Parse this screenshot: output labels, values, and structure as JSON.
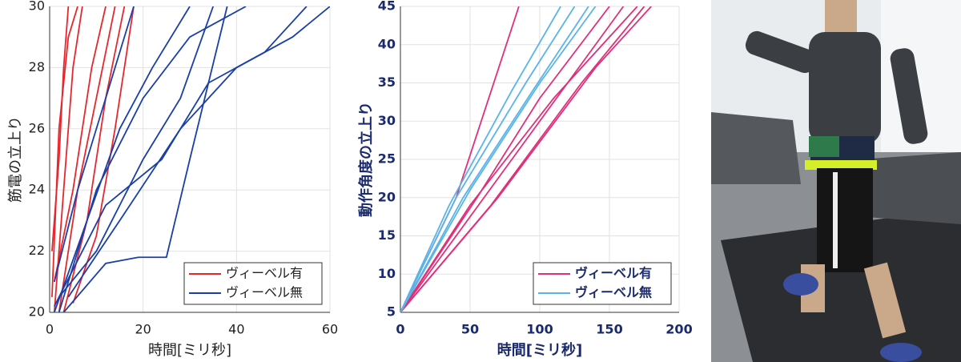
{
  "chart_data": [
    {
      "type": "line",
      "xlabel": "時間[ミリ秒]",
      "ylabel": "筋電の立上り",
      "xlim": [
        0,
        60
      ],
      "ylim": [
        20,
        30
      ],
      "xticks": [
        0,
        20,
        40,
        60
      ],
      "yticks": [
        20,
        22,
        24,
        26,
        28,
        30
      ],
      "grid": true,
      "legend": "lower right",
      "series": [
        {
          "name": "ヴィーベル有",
          "color": "#e8262e",
          "trials": [
            {
              "x": [
                1,
                3,
                5,
                7
              ],
              "y": [
                20,
                24,
                28,
                30
              ]
            },
            {
              "x": [
                0.5,
                2,
                4,
                6
              ],
              "y": [
                20.5,
                26,
                29,
                30
              ]
            },
            {
              "x": [
                2,
                6,
                10,
                14
              ],
              "y": [
                20,
                24,
                27,
                30
              ]
            },
            {
              "x": [
                1,
                5,
                9,
                12
              ],
              "y": [
                21,
                24,
                28,
                30
              ]
            },
            {
              "x": [
                3,
                8,
                12,
                16
              ],
              "y": [
                20,
                23,
                27,
                30
              ]
            },
            {
              "x": [
                0.5,
                2,
                3,
                4
              ],
              "y": [
                22,
                25,
                28,
                30
              ]
            },
            {
              "x": [
                5,
                10,
                14,
                18
              ],
              "y": [
                20.3,
                22.5,
                26,
                30
              ]
            }
          ]
        },
        {
          "name": "ヴィーベル無",
          "color": "#1a3fa6",
          "trials": [
            {
              "x": [
                1,
                8,
                15,
                22,
                30
              ],
              "y": [
                20,
                23,
                26,
                28,
                30
              ]
            },
            {
              "x": [
                2,
                10,
                20,
                28,
                35
              ],
              "y": [
                20.5,
                22,
                25,
                27,
                30
              ]
            },
            {
              "x": [
                3,
                12,
                19,
                25,
                30,
                38
              ],
              "y": [
                20,
                21.6,
                21.8,
                21.8,
                25,
                30
              ]
            },
            {
              "x": [
                1,
                6,
                12,
                18
              ],
              "y": [
                21,
                24,
                27,
                30
              ]
            },
            {
              "x": [
                4,
                15,
                28,
                40,
                52,
                60
              ],
              "y": [
                20.5,
                23,
                26,
                28,
                29,
                30
              ]
            },
            {
              "x": [
                2,
                10,
                20,
                30,
                42
              ],
              "y": [
                20,
                24,
                27,
                29,
                30
              ]
            },
            {
              "x": [
                1,
                12,
                24,
                34,
                46,
                55
              ],
              "y": [
                20.2,
                23.5,
                25,
                27.5,
                28.5,
                30
              ]
            }
          ]
        }
      ]
    },
    {
      "type": "line",
      "xlabel": "時間[ミリ秒]",
      "ylabel": "動作角度の立上り",
      "xlim": [
        0,
        200
      ],
      "ylim": [
        5,
        45
      ],
      "xticks": [
        0,
        50,
        100,
        150,
        200
      ],
      "yticks": [
        5,
        10,
        15,
        20,
        25,
        30,
        35,
        40,
        45
      ],
      "grid": true,
      "legend": "lower right",
      "series": [
        {
          "name": "ヴィーベル有",
          "color": "#e0307a",
          "trials": [
            {
              "x": [
                0,
                40,
                85
              ],
              "y": [
                5,
                20,
                45
              ]
            },
            {
              "x": [
                0,
                60,
                120,
                160
              ],
              "y": [
                5,
                20,
                35,
                45
              ]
            },
            {
              "x": [
                0,
                50,
                110,
                170
              ],
              "y": [
                5,
                19,
                33,
                45
              ]
            },
            {
              "x": [
                0,
                70,
                140,
                180
              ],
              "y": [
                5,
                20,
                37,
                45
              ]
            },
            {
              "x": [
                0,
                55,
                100,
                150
              ],
              "y": [
                5,
                20,
                33,
                45
              ]
            },
            {
              "x": [
                0,
                65,
                130,
                175
              ],
              "y": [
                5,
                19,
                35,
                45
              ]
            }
          ]
        },
        {
          "name": "ヴィーベル無",
          "color": "#5ab4e8",
          "trials": [
            {
              "x": [
                0,
                40,
                90,
                125
              ],
              "y": [
                5,
                20,
                35,
                45
              ]
            },
            {
              "x": [
                0,
                45,
                95,
                135
              ],
              "y": [
                5,
                20,
                34,
                45
              ]
            },
            {
              "x": [
                0,
                50,
                100,
                140
              ],
              "y": [
                5,
                21,
                35,
                45
              ]
            },
            {
              "x": [
                0,
                35,
                80,
                115
              ],
              "y": [
                5,
                19,
                34,
                45
              ]
            }
          ]
        }
      ]
    }
  ]
}
